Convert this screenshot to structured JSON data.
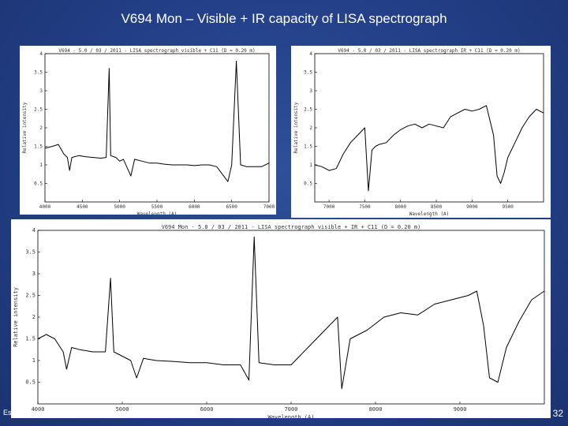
{
  "slide": {
    "title": "V694 Mon – Visible + IR capacity of LISA spectrograph",
    "footer_left": "Es",
    "slide_number": "32"
  },
  "colors": {
    "background": "#24418a",
    "line": "#000000",
    "panel": "#ffffff"
  },
  "chart_data": [
    {
      "type": "line",
      "title": "V694 - 5.0 / 03 / 2011 - LISA spectrograph visible + C11 (D = 0.20 m)",
      "xlabel": "Wavelength (A)",
      "ylabel": "Relative intensity",
      "xlim": [
        4000,
        7000
      ],
      "ylim": [
        0,
        4
      ],
      "xticks": [
        4000,
        4500,
        5000,
        5500,
        6000,
        6500,
        7000
      ],
      "yticks": [
        0.5,
        1,
        1.5,
        2,
        2.5,
        3,
        3.5,
        4
      ],
      "points": [
        [
          4000,
          1.45
        ],
        [
          4100,
          1.5
        ],
        [
          4180,
          1.55
        ],
        [
          4250,
          1.3
        ],
        [
          4300,
          1.2
        ],
        [
          4330,
          0.85
        ],
        [
          4360,
          1.2
        ],
        [
          4450,
          1.25
        ],
        [
          4550,
          1.22
        ],
        [
          4650,
          1.2
        ],
        [
          4750,
          1.18
        ],
        [
          4820,
          1.2
        ],
        [
          4860,
          3.6
        ],
        [
          4880,
          1.25
        ],
        [
          4950,
          1.2
        ],
        [
          5000,
          1.1
        ],
        [
          5050,
          1.15
        ],
        [
          5150,
          0.7
        ],
        [
          5200,
          1.15
        ],
        [
          5300,
          1.1
        ],
        [
          5400,
          1.05
        ],
        [
          5500,
          1.05
        ],
        [
          5600,
          1.02
        ],
        [
          5700,
          1.0
        ],
        [
          5800,
          1.0
        ],
        [
          5900,
          1.0
        ],
        [
          6000,
          0.98
        ],
        [
          6100,
          1.0
        ],
        [
          6200,
          1.0
        ],
        [
          6300,
          0.95
        ],
        [
          6450,
          0.55
        ],
        [
          6500,
          1.0
        ],
        [
          6563,
          3.8
        ],
        [
          6620,
          1.0
        ],
        [
          6700,
          0.95
        ],
        [
          6800,
          0.95
        ],
        [
          6900,
          0.95
        ],
        [
          7000,
          1.05
        ]
      ]
    },
    {
      "type": "line",
      "title": "V694 - 5.0 / 03 / 2011 - LISA spectrograph IR + C11 (D = 0.20 m)",
      "xlabel": "Wavelength (A)",
      "ylabel": "Relative intensity",
      "xlim": [
        6800,
        10000
      ],
      "ylim": [
        0,
        4
      ],
      "xticks": [
        7000,
        7500,
        8000,
        8500,
        9000,
        9500
      ],
      "yticks": [
        0.5,
        1,
        1.5,
        2,
        2.5,
        3,
        3.5,
        4
      ],
      "points": [
        [
          6800,
          1.0
        ],
        [
          6900,
          0.95
        ],
        [
          7000,
          0.85
        ],
        [
          7100,
          0.9
        ],
        [
          7200,
          1.3
        ],
        [
          7300,
          1.6
        ],
        [
          7400,
          1.8
        ],
        [
          7500,
          2.0
        ],
        [
          7550,
          0.3
        ],
        [
          7600,
          1.4
        ],
        [
          7650,
          1.5
        ],
        [
          7700,
          1.55
        ],
        [
          7800,
          1.6
        ],
        [
          7900,
          1.8
        ],
        [
          8000,
          1.95
        ],
        [
          8100,
          2.05
        ],
        [
          8200,
          2.1
        ],
        [
          8300,
          2.0
        ],
        [
          8400,
          2.1
        ],
        [
          8500,
          2.05
        ],
        [
          8600,
          2.0
        ],
        [
          8700,
          2.3
        ],
        [
          8800,
          2.4
        ],
        [
          8900,
          2.5
        ],
        [
          9000,
          2.45
        ],
        [
          9100,
          2.5
        ],
        [
          9200,
          2.6
        ],
        [
          9300,
          1.8
        ],
        [
          9350,
          0.7
        ],
        [
          9400,
          0.5
        ],
        [
          9450,
          0.8
        ],
        [
          9500,
          1.2
        ],
        [
          9600,
          1.6
        ],
        [
          9700,
          2.0
        ],
        [
          9800,
          2.3
        ],
        [
          9900,
          2.5
        ],
        [
          10000,
          2.4
        ]
      ]
    },
    {
      "type": "line",
      "title": "V694 Mon - 5.0 / 03 / 2011 - LISA spectrograph visible + IR + C11 (D = 0.20 m)",
      "xlabel": "Wavelength (A)",
      "ylabel": "Relative intensity",
      "xlim": [
        4000,
        10000
      ],
      "ylim": [
        0,
        4
      ],
      "xticks": [
        4000,
        5000,
        6000,
        7000,
        8000,
        9000
      ],
      "yticks": [
        0.5,
        1,
        1.5,
        2,
        2.5,
        3,
        3.5,
        4
      ],
      "points": [
        [
          4000,
          1.5
        ],
        [
          4100,
          1.6
        ],
        [
          4200,
          1.5
        ],
        [
          4300,
          1.2
        ],
        [
          4340,
          0.8
        ],
        [
          4400,
          1.3
        ],
        [
          4500,
          1.25
        ],
        [
          4650,
          1.2
        ],
        [
          4800,
          1.2
        ],
        [
          4861,
          2.9
        ],
        [
          4900,
          1.2
        ],
        [
          5000,
          1.1
        ],
        [
          5100,
          1.0
        ],
        [
          5170,
          0.6
        ],
        [
          5250,
          1.05
        ],
        [
          5400,
          1.0
        ],
        [
          5600,
          0.98
        ],
        [
          5800,
          0.95
        ],
        [
          6000,
          0.95
        ],
        [
          6200,
          0.9
        ],
        [
          6400,
          0.9
        ],
        [
          6500,
          0.55
        ],
        [
          6563,
          3.85
        ],
        [
          6620,
          0.95
        ],
        [
          6800,
          0.9
        ],
        [
          7000,
          0.9
        ],
        [
          7200,
          1.3
        ],
        [
          7400,
          1.7
        ],
        [
          7550,
          2.0
        ],
        [
          7600,
          0.35
        ],
        [
          7700,
          1.5
        ],
        [
          7900,
          1.7
        ],
        [
          8100,
          2.0
        ],
        [
          8300,
          2.1
        ],
        [
          8500,
          2.05
        ],
        [
          8700,
          2.3
        ],
        [
          8900,
          2.4
        ],
        [
          9100,
          2.5
        ],
        [
          9200,
          2.6
        ],
        [
          9280,
          1.8
        ],
        [
          9350,
          0.6
        ],
        [
          9450,
          0.5
        ],
        [
          9550,
          1.3
        ],
        [
          9700,
          1.9
        ],
        [
          9850,
          2.4
        ],
        [
          10000,
          2.6
        ]
      ]
    }
  ]
}
